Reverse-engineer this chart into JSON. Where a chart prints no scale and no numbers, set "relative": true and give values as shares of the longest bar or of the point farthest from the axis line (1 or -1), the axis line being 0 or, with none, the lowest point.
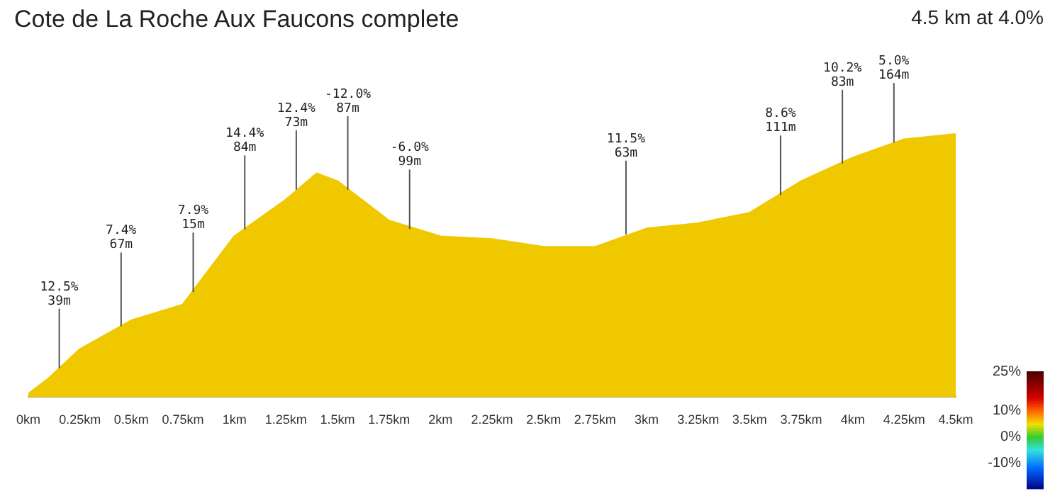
{
  "chart_data": {
    "type": "area",
    "title": "Cote de La Roche Aux Faucons complete",
    "subtitle": "4.5 km at 4.0%",
    "relative": true,
    "marker": "none",
    "x": [
      0,
      0.1,
      0.25,
      0.5,
      0.75,
      1,
      1.25,
      1.4,
      1.5,
      1.75,
      2,
      2.25,
      2.5,
      2.75,
      3,
      3.25,
      3.5,
      3.75,
      4,
      4.25,
      4.5
    ],
    "values": [
      0.01,
      0.07,
      0.18,
      0.29,
      0.35,
      0.61,
      0.75,
      0.85,
      0.82,
      0.67,
      0.61,
      0.6,
      0.57,
      0.57,
      0.64,
      0.66,
      0.7,
      0.82,
      0.91,
      0.98,
      1
    ],
    "color": "#f0c800",
    "xlim": [
      0,
      4.5
    ],
    "xticks": [
      {
        "value": 0,
        "label": "0km"
      },
      {
        "value": 0.25,
        "label": "0.25km"
      },
      {
        "value": 0.5,
        "label": "0.5km"
      },
      {
        "value": 0.75,
        "label": "0.75km"
      },
      {
        "value": 1,
        "label": "1km"
      },
      {
        "value": 1.25,
        "label": "1.25km"
      },
      {
        "value": 1.5,
        "label": "1.5km"
      },
      {
        "value": 1.75,
        "label": "1.75km"
      },
      {
        "value": 2,
        "label": "2km"
      },
      {
        "value": 2.25,
        "label": "2.25km"
      },
      {
        "value": 2.5,
        "label": "2.5km"
      },
      {
        "value": 2.75,
        "label": "2.75km"
      },
      {
        "value": 3,
        "label": "3km"
      },
      {
        "value": 3.25,
        "label": "3.25km"
      },
      {
        "value": 3.5,
        "label": "3.5km"
      },
      {
        "value": 3.75,
        "label": "3.75km"
      },
      {
        "value": 4,
        "label": "4km"
      },
      {
        "value": 4.25,
        "label": "4.25km"
      },
      {
        "value": 4.5,
        "label": "4.5km"
      }
    ],
    "clim": [
      -20,
      25
    ],
    "cticks": [
      {
        "value": 25,
        "label": "25%"
      },
      {
        "value": 10,
        "label": "10%"
      },
      {
        "value": 0,
        "label": "0%"
      },
      {
        "value": -10,
        "label": "-10%"
      }
    ],
    "grid": false,
    "legend": false,
    "annotations": [
      {
        "text": "12.5%\n39m",
        "x": 0.15,
        "y": 0.11
      },
      {
        "text": "7.4%\n67m",
        "x": 0.45,
        "y": 0.27
      },
      {
        "text": "7.9%\n15m",
        "x": 0.8,
        "y": 0.4
      },
      {
        "text": "14.4%\n84m",
        "x": 1.05,
        "y": 0.64
      },
      {
        "text": "12.4%\n73m",
        "x": 1.3,
        "y": 0.79
      },
      {
        "text": "-12.0%\n87m",
        "x": 1.55,
        "y": 0.79
      },
      {
        "text": "-6.0%\n99m",
        "x": 1.85,
        "y": 0.64
      },
      {
        "text": "11.5%\n63m",
        "x": 2.9,
        "y": 0.62
      },
      {
        "text": "8.6%\n111m",
        "x": 3.65,
        "y": 0.77
      },
      {
        "text": "10.2%\n83m",
        "x": 3.95,
        "y": 0.89
      },
      {
        "text": "5.0%\n164m",
        "x": 4.2,
        "y": 0.97
      }
    ]
  }
}
